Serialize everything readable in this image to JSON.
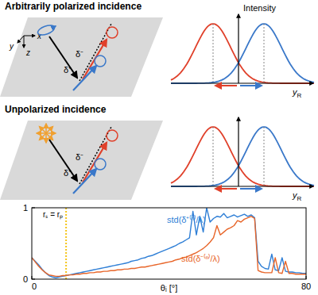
{
  "panels": [
    {
      "title": "Arbitrarily polarized incidence",
      "axes": [
        "x",
        "y",
        "z"
      ],
      "beams": [
        "δ⁻",
        "δ⁺"
      ],
      "plot_title": "Intensity",
      "plot_axis": {
        "main": "y",
        "sub": "R"
      }
    },
    {
      "title": "Unpolarized incidence",
      "beams": [
        "δ⁻",
        "δ⁺"
      ],
      "plot_axis": {
        "main": "y",
        "sub": "R"
      }
    }
  ],
  "chart_data": {
    "type": "line",
    "xlabel": "θᵢ [°]",
    "x": [
      0,
      1,
      2,
      3,
      4,
      5,
      6,
      7,
      8,
      9,
      10,
      11,
      12,
      13,
      14,
      15,
      16,
      17,
      18,
      19,
      20,
      21,
      22,
      23,
      24,
      25,
      26,
      27,
      28,
      29,
      30,
      31,
      32,
      33,
      34,
      35,
      36,
      37,
      38,
      39,
      40,
      41,
      42,
      43,
      44,
      45,
      46,
      47,
      48,
      49,
      50,
      51,
      52,
      53,
      54,
      55,
      56,
      57,
      58,
      59,
      60,
      61,
      62,
      63,
      64,
      65,
      66,
      67,
      68,
      69,
      70,
      71,
      72,
      73,
      74,
      75,
      76,
      77,
      78,
      79,
      80
    ],
    "series": [
      {
        "name": "std(δ⁺⁽ⁿ⁾/λ)",
        "color": "#2f7fd6",
        "values": [
          0.3,
          0.25,
          0.2,
          0.14,
          0.09,
          0.05,
          0.03,
          0.02,
          0.03,
          0.04,
          0.05,
          0.06,
          0.07,
          0.08,
          0.09,
          0.1,
          0.11,
          0.12,
          0.13,
          0.14,
          0.15,
          0.16,
          0.17,
          0.18,
          0.19,
          0.2,
          0.21,
          0.22,
          0.23,
          0.25,
          0.26,
          0.27,
          0.29,
          0.3,
          0.32,
          0.33,
          0.35,
          0.37,
          0.39,
          0.41,
          0.43,
          0.45,
          0.47,
          0.5,
          0.52,
          0.55,
          0.58,
          0.95,
          0.62,
          0.88,
          0.66,
          1.0,
          0.8,
          0.85,
          0.88,
          0.87,
          0.92,
          0.86,
          0.88,
          0.9,
          0.87,
          0.89,
          0.91,
          0.88,
          0.9,
          0.86,
          0.25,
          0.18,
          0.15,
          0.14,
          0.35,
          0.13,
          0.12,
          0.3,
          0.11,
          0.1,
          0.1,
          0.09,
          0.09,
          0.08,
          0.08
        ]
      },
      {
        "name": "std(δ⁻⁽ⁿ⁾/λ)",
        "color": "#e8662a",
        "values": [
          0.3,
          0.24,
          0.18,
          0.13,
          0.09,
          0.06,
          0.05,
          0.04,
          0.04,
          0.05,
          0.05,
          0.06,
          0.06,
          0.07,
          0.07,
          0.08,
          0.08,
          0.09,
          0.09,
          0.1,
          0.1,
          0.11,
          0.11,
          0.12,
          0.12,
          0.13,
          0.13,
          0.14,
          0.14,
          0.15,
          0.15,
          0.16,
          0.17,
          0.17,
          0.18,
          0.19,
          0.2,
          0.21,
          0.22,
          0.23,
          0.24,
          0.25,
          0.27,
          0.28,
          0.3,
          0.31,
          0.33,
          0.35,
          0.37,
          0.4,
          0.43,
          0.47,
          0.52,
          0.58,
          0.75,
          0.62,
          0.66,
          0.7,
          0.72,
          0.75,
          0.82,
          0.8,
          0.84,
          0.86,
          0.88,
          0.85,
          0.12,
          0.1,
          0.09,
          0.09,
          0.09,
          0.3,
          0.09,
          0.08,
          0.25,
          0.08,
          0.08,
          0.07,
          0.07,
          0.07,
          0.07
        ]
      }
    ],
    "xlim": [
      0,
      80
    ],
    "xticks": [
      0,
      80
    ],
    "ylim": [
      0,
      1
    ],
    "yticks": [
      0,
      1
    ],
    "annotations": [
      {
        "text": "rₛ = rₚ",
        "x": 10
      }
    ]
  }
}
